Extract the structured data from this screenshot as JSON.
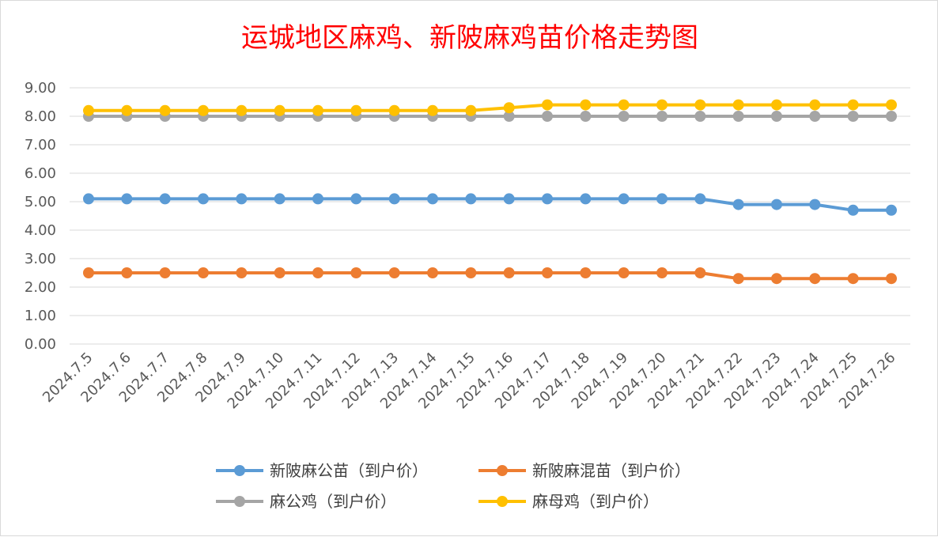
{
  "chart_data": {
    "type": "line",
    "title": "运城地区麻鸡、新陂麻鸡苗价格走势图",
    "categories": [
      "2024.7.5",
      "2024.7.6",
      "2024.7.7",
      "2024.7.8",
      "2024.7.9",
      "2024.7.10",
      "2024.7.11",
      "2024.7.12",
      "2024.7.13",
      "2024.7.14",
      "2024.7.15",
      "2024.7.16",
      "2024.7.17",
      "2024.7.18",
      "2024.7.19",
      "2024.7.20",
      "2024.7.21",
      "2024.7.22",
      "2024.7.23",
      "2024.7.24",
      "2024.7.25",
      "2024.7.26"
    ],
    "series": [
      {
        "name": "新陂麻公苗（到户价）",
        "color": "#5b9bd5",
        "values": [
          5.1,
          5.1,
          5.1,
          5.1,
          5.1,
          5.1,
          5.1,
          5.1,
          5.1,
          5.1,
          5.1,
          5.1,
          5.1,
          5.1,
          5.1,
          5.1,
          5.1,
          4.9,
          4.9,
          4.9,
          4.7,
          4.7
        ]
      },
      {
        "name": "新陂麻混苗（到户价）",
        "color": "#ed7d31",
        "values": [
          2.5,
          2.5,
          2.5,
          2.5,
          2.5,
          2.5,
          2.5,
          2.5,
          2.5,
          2.5,
          2.5,
          2.5,
          2.5,
          2.5,
          2.5,
          2.5,
          2.5,
          2.3,
          2.3,
          2.3,
          2.3,
          2.3
        ]
      },
      {
        "name": "麻公鸡（到户价）",
        "color": "#a5a5a5",
        "values": [
          8.0,
          8.0,
          8.0,
          8.0,
          8.0,
          8.0,
          8.0,
          8.0,
          8.0,
          8.0,
          8.0,
          8.0,
          8.0,
          8.0,
          8.0,
          8.0,
          8.0,
          8.0,
          8.0,
          8.0,
          8.0,
          8.0
        ]
      },
      {
        "name": "麻母鸡（到户价）",
        "color": "#ffc000",
        "values": [
          8.2,
          8.2,
          8.2,
          8.2,
          8.2,
          8.2,
          8.2,
          8.2,
          8.2,
          8.2,
          8.2,
          8.3,
          8.4,
          8.4,
          8.4,
          8.4,
          8.4,
          8.4,
          8.4,
          8.4,
          8.4,
          8.4
        ]
      }
    ],
    "yticks": [
      "0.00",
      "1.00",
      "2.00",
      "3.00",
      "4.00",
      "5.00",
      "6.00",
      "7.00",
      "8.00",
      "9.00"
    ],
    "ylim": [
      0,
      9
    ],
    "grid": true,
    "legend": "bottom"
  }
}
